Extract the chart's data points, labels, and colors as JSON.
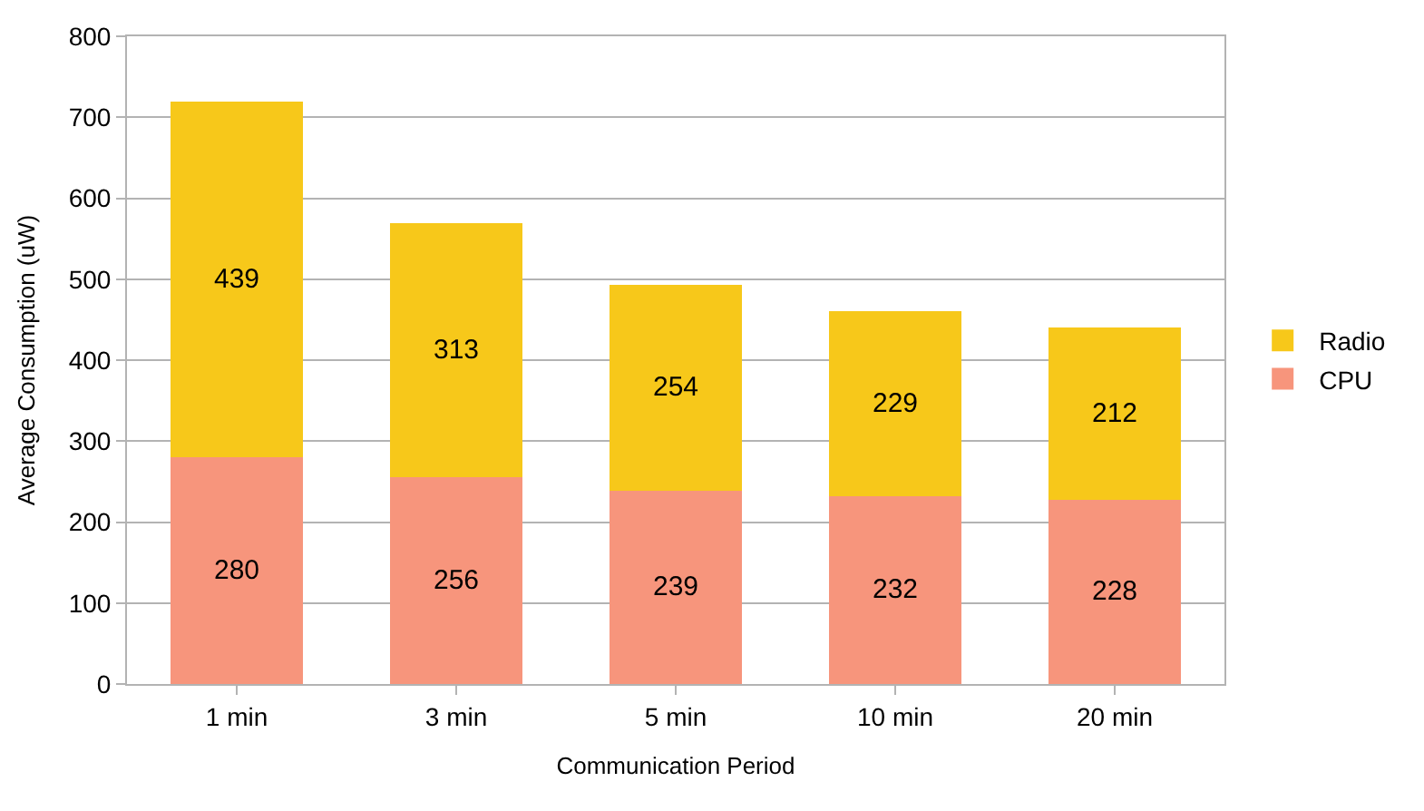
{
  "chart_data": {
    "type": "bar",
    "stacked": true,
    "xlabel": "Communication Period",
    "ylabel": "Average Consumption (uW)",
    "categories": [
      "1 min",
      "3 min",
      "5 min",
      "10 min",
      "20 min"
    ],
    "series": [
      {
        "name": "CPU",
        "color": "#f7957c",
        "values": [
          280,
          256,
          239,
          232,
          228
        ]
      },
      {
        "name": "Radio",
        "color": "#f7c81a",
        "values": [
          439,
          313,
          254,
          229,
          212
        ]
      }
    ],
    "ylim": [
      0,
      800
    ],
    "yticks": [
      0,
      100,
      200,
      300,
      400,
      500,
      600,
      700,
      800
    ],
    "grid": "y",
    "legend": "right",
    "data_labels": true
  }
}
